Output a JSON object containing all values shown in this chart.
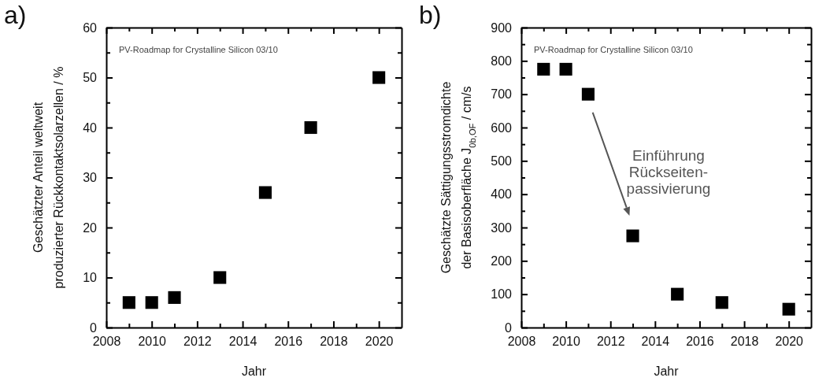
{
  "chart_data": [
    {
      "type": "scatter",
      "title": "a)",
      "xlabel": "Jahr",
      "ylabel": "Geschätzter Anteil weltweit\nproduzierter Rückkontaktsolarzellen / %",
      "marker": "square",
      "x": [
        2009,
        2010,
        2011,
        2013,
        2015,
        2017,
        2020
      ],
      "series": [
        {
          "color": "#000000",
          "values": [
            5,
            5,
            6,
            10,
            27,
            40,
            50
          ]
        }
      ],
      "xlim": [
        2008,
        2021
      ],
      "ylim": [
        0,
        60
      ],
      "xticks": [
        2008,
        {
          "value": 2009,
          "label": null
        },
        2010,
        {
          "value": 2011,
          "label": null
        },
        2012,
        {
          "value": 2013,
          "label": null
        },
        2014,
        {
          "value": 2015,
          "label": null
        },
        2016,
        {
          "value": 2017,
          "label": null
        },
        2018,
        {
          "value": 2019,
          "label": null
        },
        2020
      ],
      "yticks": [
        0,
        {
          "value": 5,
          "label": null
        },
        10,
        {
          "value": 15,
          "label": null
        },
        20,
        {
          "value": 25,
          "label": null
        },
        30,
        {
          "value": 35,
          "label": null
        },
        40,
        {
          "value": 45,
          "label": null
        },
        50,
        {
          "value": 55,
          "label": null
        },
        60
      ],
      "annotations": [
        "PV-Roadmap for Crystalline Silicon 03/10"
      ]
    },
    {
      "type": "scatter",
      "title": "b)",
      "xlabel": "Jahr",
      "ylabel": "Geschätzte Sättigungsstromdichte\nder Basisoberfläche J$_{0b,OF}$ / cm/s",
      "marker": "square",
      "x": [
        2009,
        2010,
        2011,
        2013,
        2015,
        2017,
        2020
      ],
      "series": [
        {
          "color": "#000000",
          "values": [
            775,
            775,
            700,
            275,
            100,
            75,
            55
          ]
        }
      ],
      "xlim": [
        2008,
        2021
      ],
      "ylim": [
        0,
        900
      ],
      "xticks": [
        2008,
        {
          "value": 2009,
          "label": null
        },
        2010,
        {
          "value": 2011,
          "label": null
        },
        2012,
        {
          "value": 2013,
          "label": null
        },
        2014,
        {
          "value": 2015,
          "label": null
        },
        2016,
        {
          "value": 2017,
          "label": null
        },
        2018,
        {
          "value": 2019,
          "label": null
        },
        2020
      ],
      "yticks": [
        0,
        {
          "value": 50,
          "label": null
        },
        100,
        {
          "value": 150,
          "label": null
        },
        200,
        {
          "value": 250,
          "label": null
        },
        300,
        {
          "value": 350,
          "label": null
        },
        400,
        {
          "value": 450,
          "label": null
        },
        500,
        {
          "value": 550,
          "label": null
        },
        600,
        {
          "value": 650,
          "label": null
        },
        700,
        {
          "value": 750,
          "label": null
        },
        800,
        {
          "value": 850,
          "label": null
        },
        900
      ],
      "annotations": [
        "PV-Roadmap for Crystalline Silicon 03/10",
        "Einführung\nRückseiten-\npassivierung"
      ]
    }
  ]
}
